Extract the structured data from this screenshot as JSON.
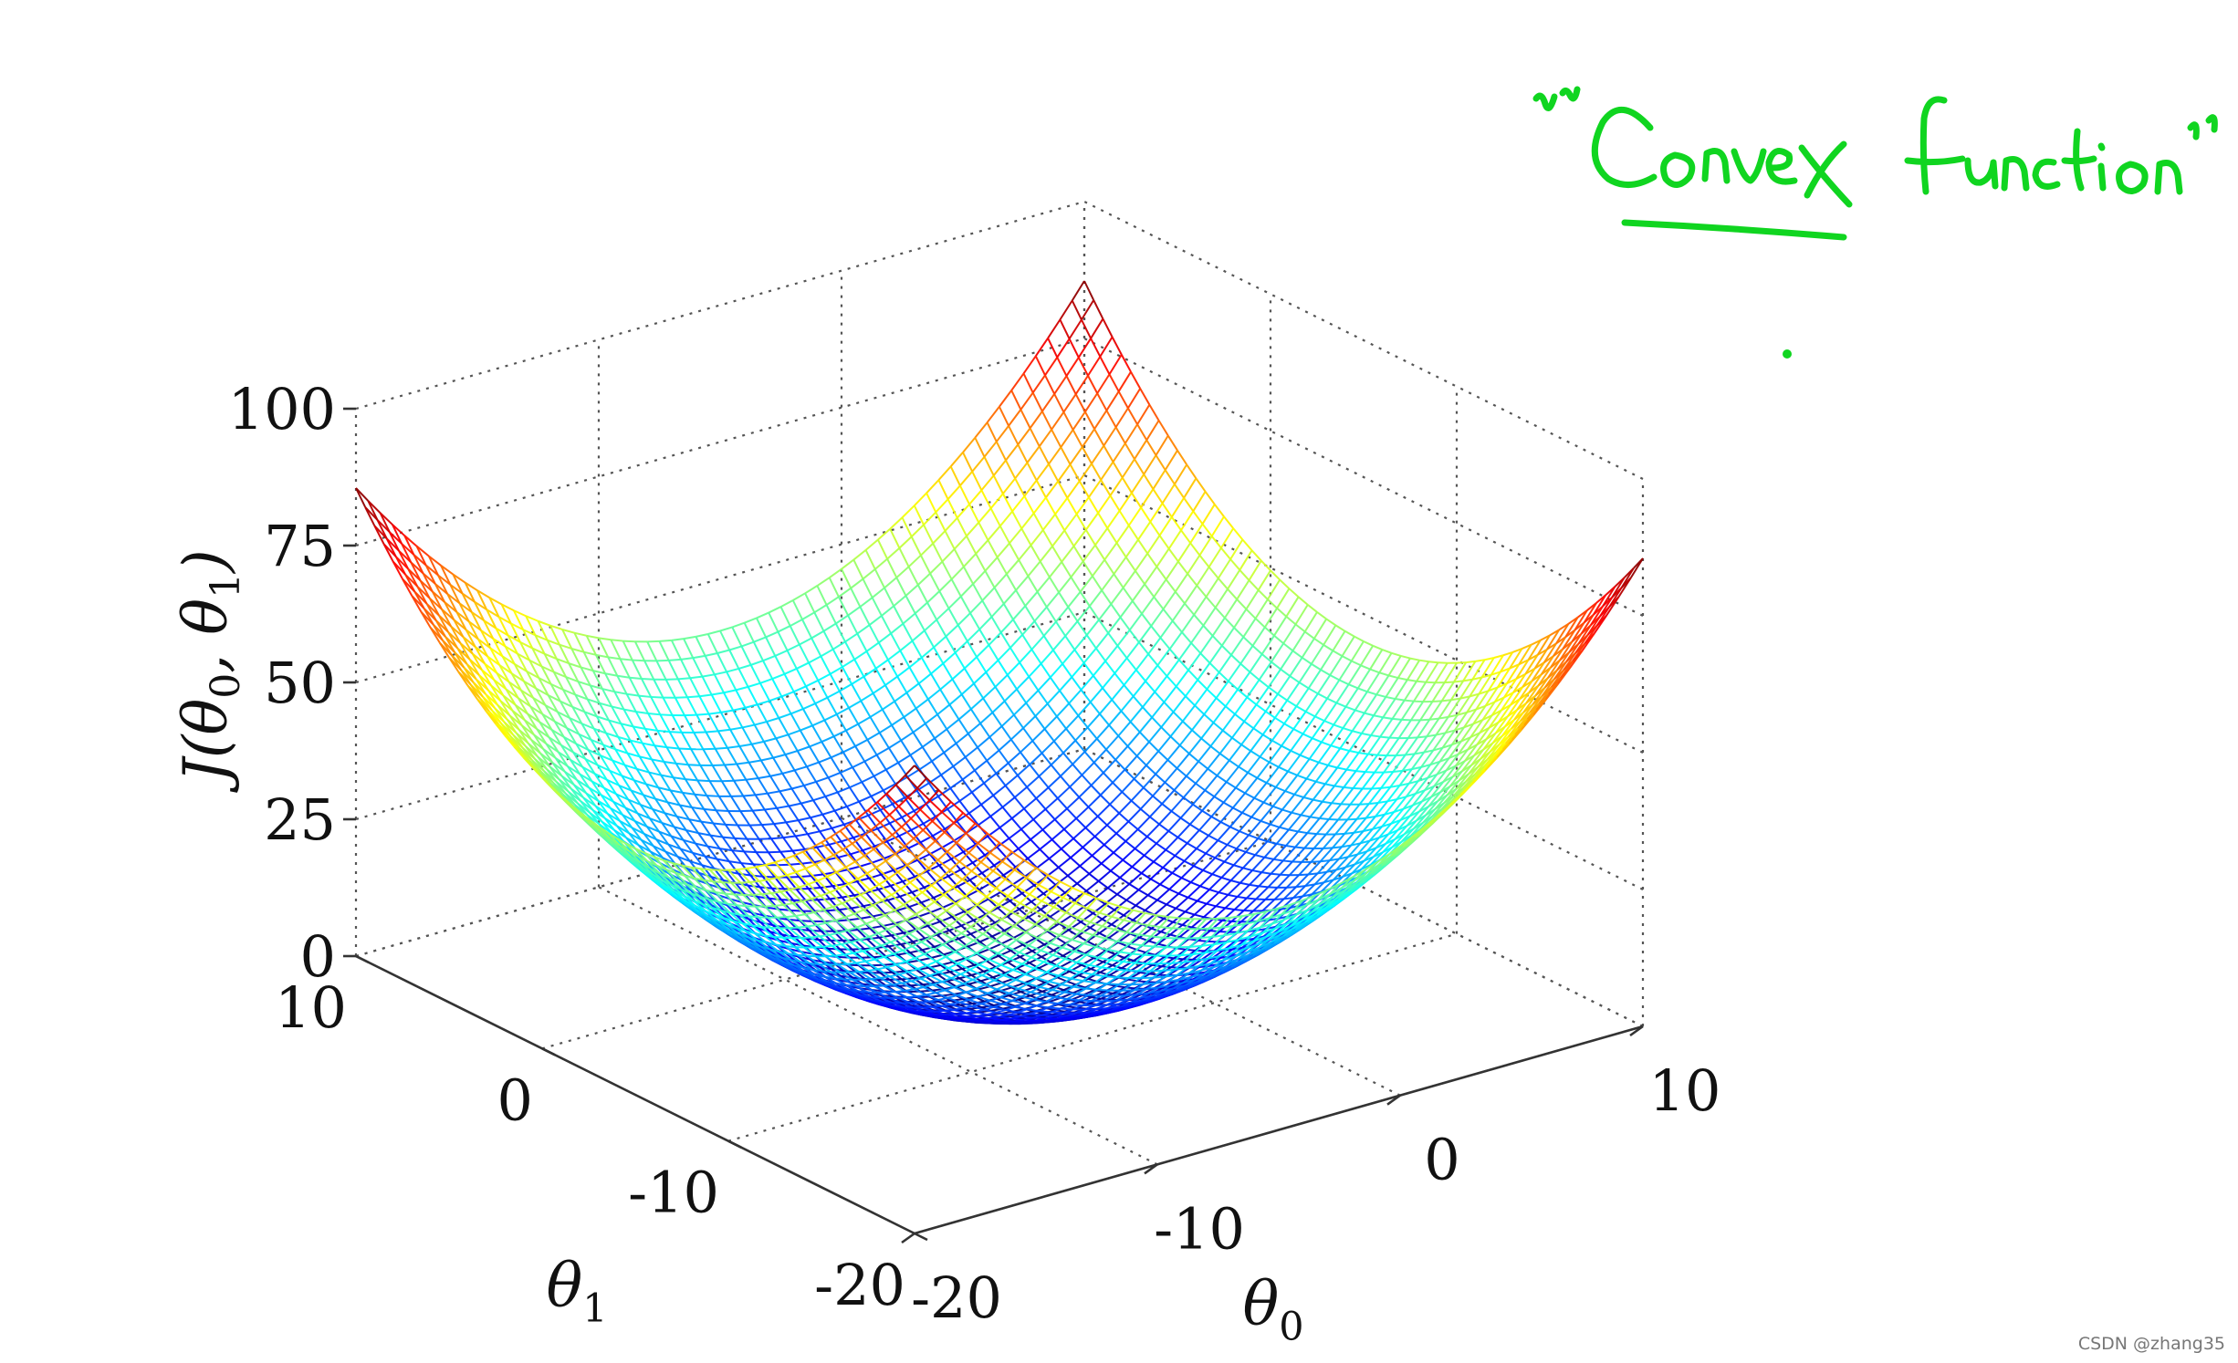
{
  "annotation": {
    "text": "\"Convex function\"",
    "color": "#10d520"
  },
  "watermark": "CSDN @zhang35",
  "chart_data": {
    "type": "surface",
    "title": "",
    "zlabel": "J(θ0, θ1)",
    "xlabel": "θ0",
    "ylabel": "θ1",
    "xlim": [
      -20,
      10
    ],
    "ylim": [
      -20,
      10
    ],
    "zlim": [
      0,
      100
    ],
    "xticks": [
      "-20",
      "-10",
      "0",
      "10"
    ],
    "yticks": [
      "-20",
      "-10",
      "0",
      "10"
    ],
    "zticks": [
      "0",
      "25",
      "50",
      "75",
      "100"
    ],
    "grid": true,
    "colormap": "jet",
    "surface": {
      "function": "J = a*(θ0 - c0)^2 + b*(θ1 - c1)^2",
      "a": 0.2,
      "b": 0.18,
      "c0": -5,
      "c1": -5,
      "min_value": 0,
      "corner_values": {
        "θ0=-20,θ1=-20": 85.5,
        "θ0=10,θ1=-20": 85.5,
        "θ0=-20,θ1=10": 85.5,
        "θ0=10,θ1=10": 85.5
      }
    }
  }
}
